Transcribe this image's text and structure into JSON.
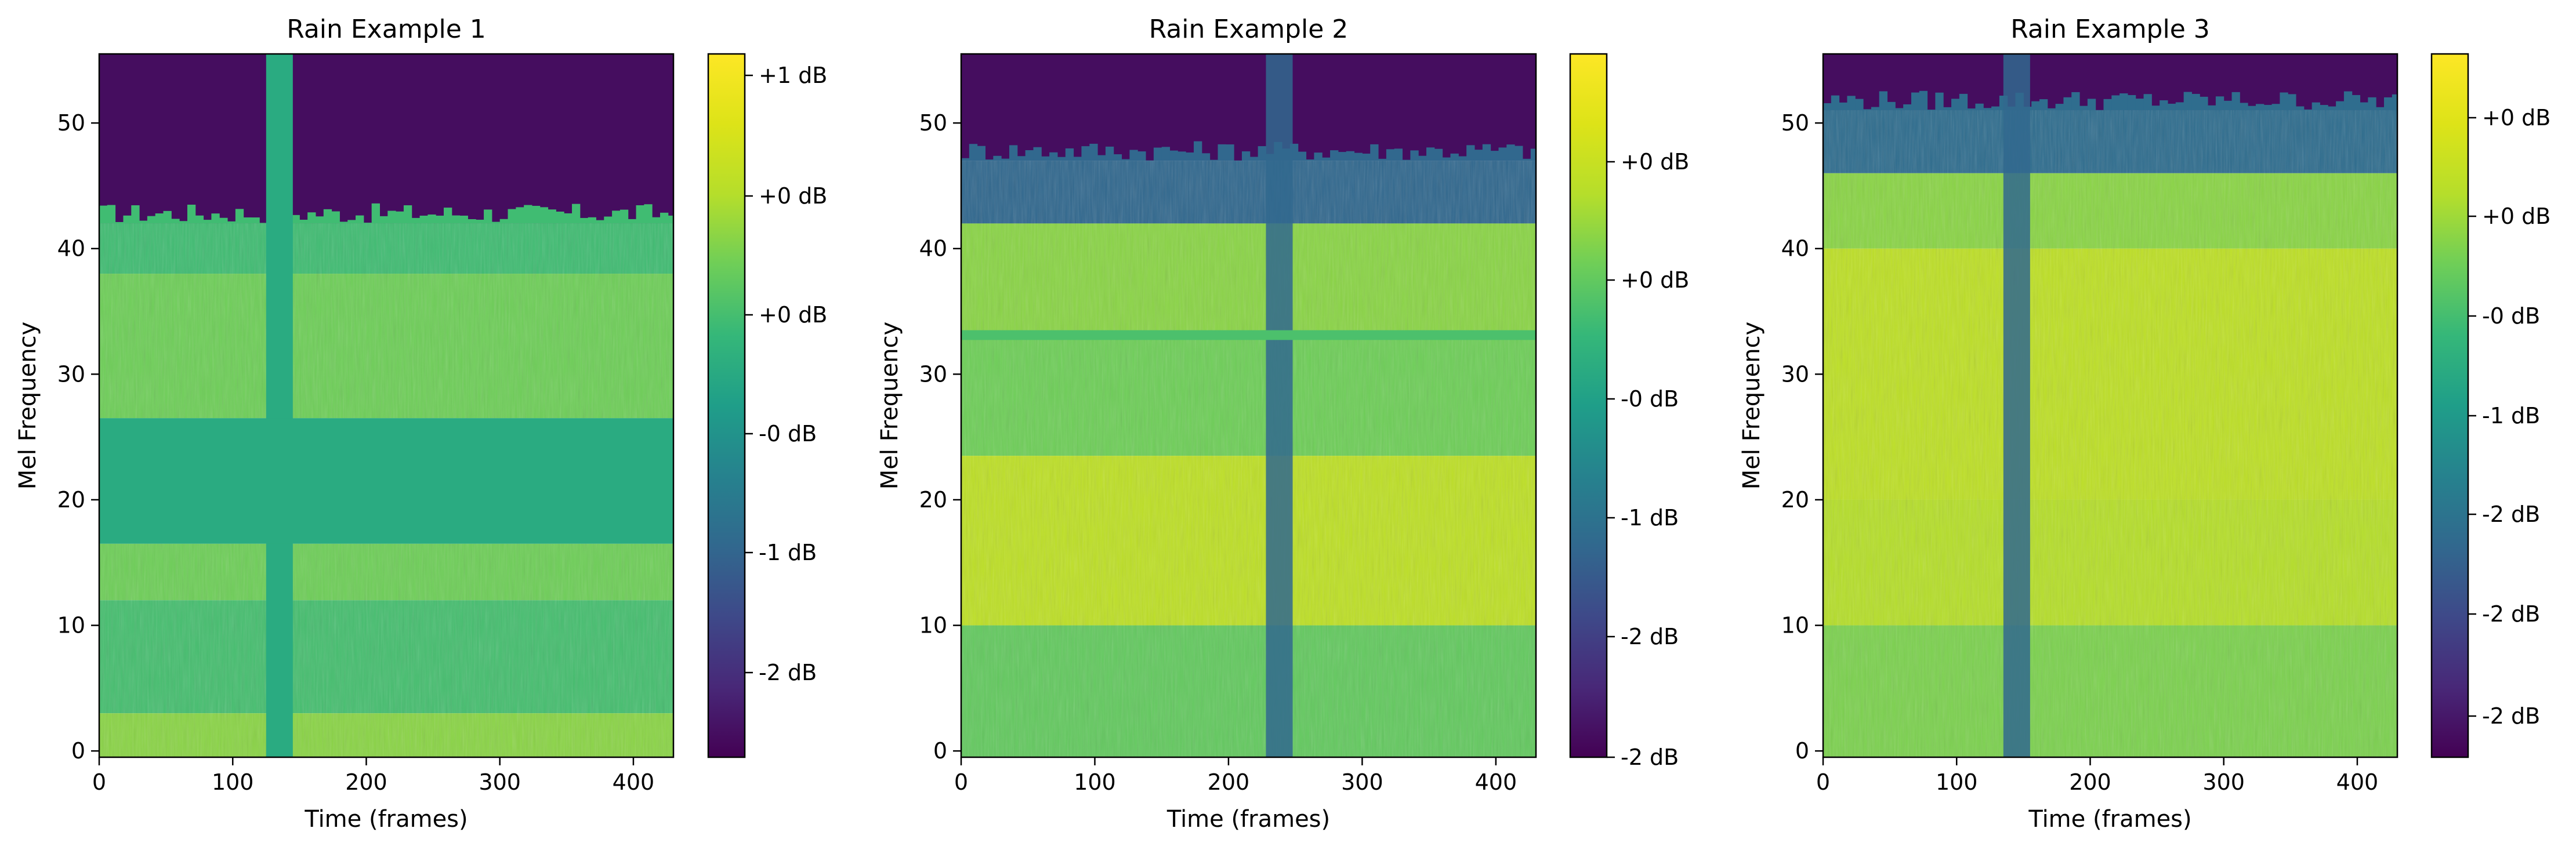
{
  "colors": {
    "viridis_low": "#440154",
    "viridis_mid": "#21918c",
    "viridis_high": "#fde725"
  },
  "chart_data": [
    {
      "type": "heatmap",
      "title": "Rain Example 1",
      "xlabel": "Time (frames)",
      "ylabel": "Mel Frequency",
      "xlim": [
        0,
        430
      ],
      "ylim": [
        -0.5,
        55.5
      ],
      "xticks": [
        "0",
        "100",
        "200",
        "300",
        "400"
      ],
      "yticks": [
        "0",
        "10",
        "20",
        "30",
        "40",
        "50"
      ],
      "colorbar": {
        "ticks": [
          "+1 dB",
          "+0 dB",
          "+0 dB",
          "-0 dB",
          "-1 dB",
          "-2 dB"
        ],
        "position": "right"
      },
      "masks": {
        "time": {
          "start": 125,
          "end": 145
        },
        "freq": {
          "start": 16.5,
          "end": 26.5
        }
      },
      "bands": [
        {
          "y_from": 42,
          "y_to": 55.5,
          "level": 0.03
        },
        {
          "y_from": 38,
          "y_to": 42,
          "level": 0.62
        },
        {
          "y_from": 26.5,
          "y_to": 38,
          "level": 0.7
        },
        {
          "y_from": 12,
          "y_to": 16.5,
          "level": 0.7
        },
        {
          "y_from": 3,
          "y_to": 12,
          "level": 0.63
        },
        {
          "y_from": -0.5,
          "y_to": 3,
          "level": 0.74
        }
      ],
      "mask_level": 0.55
    },
    {
      "type": "heatmap",
      "title": "Rain Example 2",
      "xlabel": "Time (frames)",
      "ylabel": "Mel Frequency",
      "xlim": [
        0,
        430
      ],
      "ylim": [
        -0.5,
        55.5
      ],
      "xticks": [
        "0",
        "100",
        "200",
        "300",
        "400"
      ],
      "yticks": [
        "0",
        "10",
        "20",
        "30",
        "40",
        "50"
      ],
      "colorbar": {
        "ticks": [
          "+0 dB",
          "+0 dB",
          "-0 dB",
          "-1 dB",
          "-2 dB",
          "-2 dB"
        ],
        "position": "right"
      },
      "masks": {
        "time": {
          "start": 228,
          "end": 248
        },
        "freq": {
          "start": 33.5,
          "end": 23.5
        }
      },
      "bands": [
        {
          "y_from": 47,
          "y_to": 55.5,
          "level": 0.03
        },
        {
          "y_from": 42,
          "y_to": 47,
          "level": 0.3
        },
        {
          "y_from": 33.5,
          "y_to": 42,
          "level": 0.74
        },
        {
          "y_from": 23.5,
          "y_to": 33.5,
          "level": 0.7
        },
        {
          "y_from": 10,
          "y_to": 23.5,
          "level": 0.82
        },
        {
          "y_from": -0.5,
          "y_to": 10,
          "level": 0.68
        }
      ],
      "mask_level": 0.3
    },
    {
      "type": "heatmap",
      "title": "Rain Example 3",
      "xlabel": "Time (frames)",
      "ylabel": "Mel Frequency",
      "xlim": [
        0,
        430
      ],
      "ylim": [
        -0.5,
        55.5
      ],
      "xticks": [
        "0",
        "100",
        "200",
        "300",
        "400"
      ],
      "yticks": [
        "0",
        "10",
        "20",
        "30",
        "40",
        "50"
      ],
      "colorbar": {
        "ticks": [
          "+0 dB",
          "+0 dB",
          "-0 dB",
          "-1 dB",
          "-2 dB",
          "-2 dB",
          "-2 dB"
        ],
        "position": "right"
      },
      "masks": {
        "time": {
          "start": 135,
          "end": 155
        },
        "freq": null
      },
      "bands": [
        {
          "y_from": 51,
          "y_to": 55.5,
          "level": 0.03
        },
        {
          "y_from": 46,
          "y_to": 51,
          "level": 0.32
        },
        {
          "y_from": 40,
          "y_to": 46,
          "level": 0.74
        },
        {
          "y_from": 20,
          "y_to": 40,
          "level": 0.82
        },
        {
          "y_from": 10,
          "y_to": 20,
          "level": 0.8
        },
        {
          "y_from": -0.5,
          "y_to": 10,
          "level": 0.72
        }
      ],
      "mask_level": 0.3
    }
  ]
}
